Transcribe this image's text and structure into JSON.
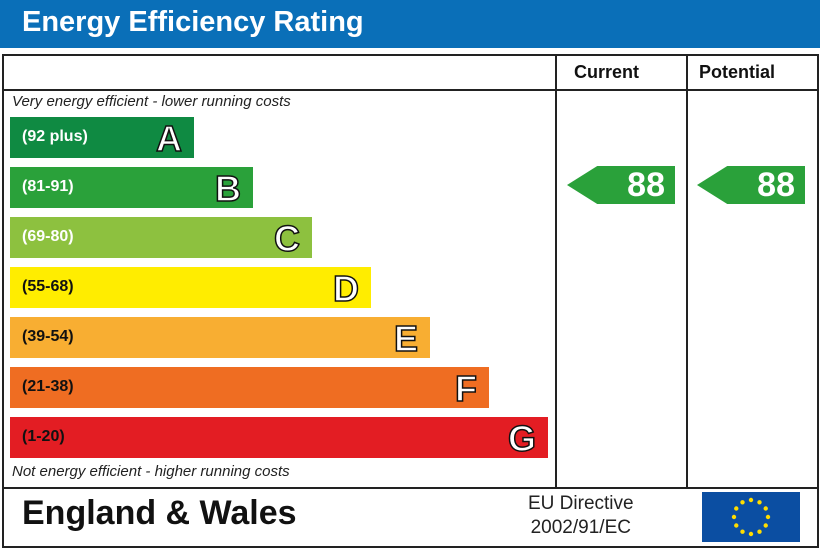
{
  "header": {
    "title": "Energy Efficiency Rating"
  },
  "columns": {
    "current": "Current",
    "potential": "Potential"
  },
  "notes": {
    "top": "Very energy efficient - lower running costs",
    "bottom": "Not energy efficient - higher running costs"
  },
  "footer": {
    "region": "England & Wales",
    "directive_line1": "EU Directive",
    "directive_line2": "2002/91/EC",
    "flag_icon": "eu-flag-icon"
  },
  "chart_data": {
    "type": "bar",
    "categories": [
      "A",
      "B",
      "C",
      "D",
      "E",
      "F",
      "G"
    ],
    "ranges": [
      "(92 plus)",
      "(81-91)",
      "(69-80)",
      "(55-68)",
      "(39-54)",
      "(21-38)",
      "(1-20)"
    ],
    "colors": [
      "#0f8a42",
      "#2aa13a",
      "#8dc13f",
      "#ffed00",
      "#f8ae32",
      "#ef6d22",
      "#e31d23"
    ],
    "current": {
      "value": 88,
      "band": "B",
      "color": "#2aa13a"
    },
    "potential": {
      "value": 88,
      "band": "B",
      "color": "#2aa13a"
    }
  }
}
